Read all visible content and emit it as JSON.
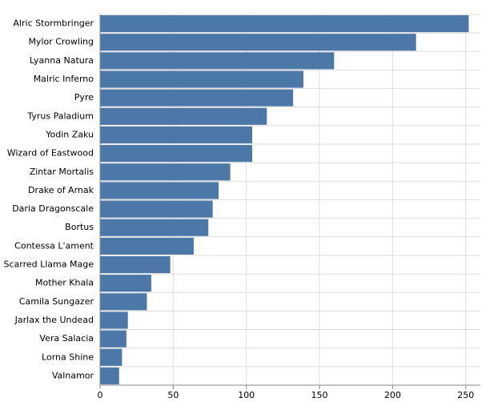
{
  "chart_data": {
    "type": "bar",
    "orientation": "horizontal",
    "categories": [
      "Alric Stormbringer",
      "Mylor Crowling",
      "Lyanna Natura",
      "Malric Inferno",
      "Pyre",
      "Tyrus Paladium",
      "Yodin Zaku",
      "Wizard of Eastwood",
      "Zintar Mortalis",
      "Drake of Arnak",
      "Daria Dragonscale",
      "Bortus",
      "Contessa L'ament",
      "Scarred Llama Mage",
      "Mother Khala",
      "Camila Sungazer",
      "Jarlax the Undead",
      "Vera Salacia",
      "Lorna Shine",
      "Valnamor"
    ],
    "values": [
      252,
      216,
      160,
      139,
      132,
      114,
      104,
      104,
      89,
      81,
      77,
      74,
      64,
      48,
      35,
      32,
      19,
      18,
      15,
      13
    ],
    "color": "#4c78a8",
    "xlim": [
      0,
      260
    ],
    "xticks": [
      0,
      50,
      100,
      150,
      200,
      250
    ],
    "grid": true
  }
}
